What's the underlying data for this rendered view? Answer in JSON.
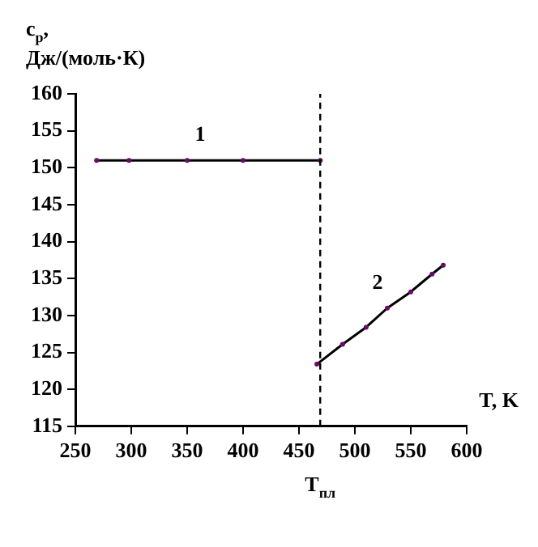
{
  "chart_data": {
    "type": "line",
    "ylabel": "c$_{p}$, Дж/(моль·К)",
    "xlabel": "T, K",
    "series": [
      {
        "name": "1",
        "color": "#000000",
        "x": [
          269,
          298,
          350,
          400,
          469
        ],
        "values": [
          151,
          151,
          151,
          151,
          151
        ]
      },
      {
        "name": "2",
        "color": "#000000",
        "x": [
          466,
          489,
          510,
          529,
          550,
          569,
          579
        ],
        "values": [
          123.4,
          126.1,
          128.4,
          131,
          133.2,
          135.6,
          136.8
        ]
      }
    ],
    "xlim": [
      250,
      600
    ],
    "xticks": [
      250,
      300,
      350,
      400,
      450,
      500,
      550,
      600
    ],
    "ylim": [
      115,
      160
    ],
    "yticks": [
      115,
      120,
      125,
      130,
      135,
      140,
      145,
      150,
      155,
      160
    ],
    "ref_lines": [
      {
        "axis": "x",
        "value": 469,
        "label": "T$_{пл}$",
        "line_style": "dashed",
        "color": "#000000"
      }
    ],
    "grid": false,
    "legend": false,
    "marker": "circle",
    "line_style": "solid"
  }
}
